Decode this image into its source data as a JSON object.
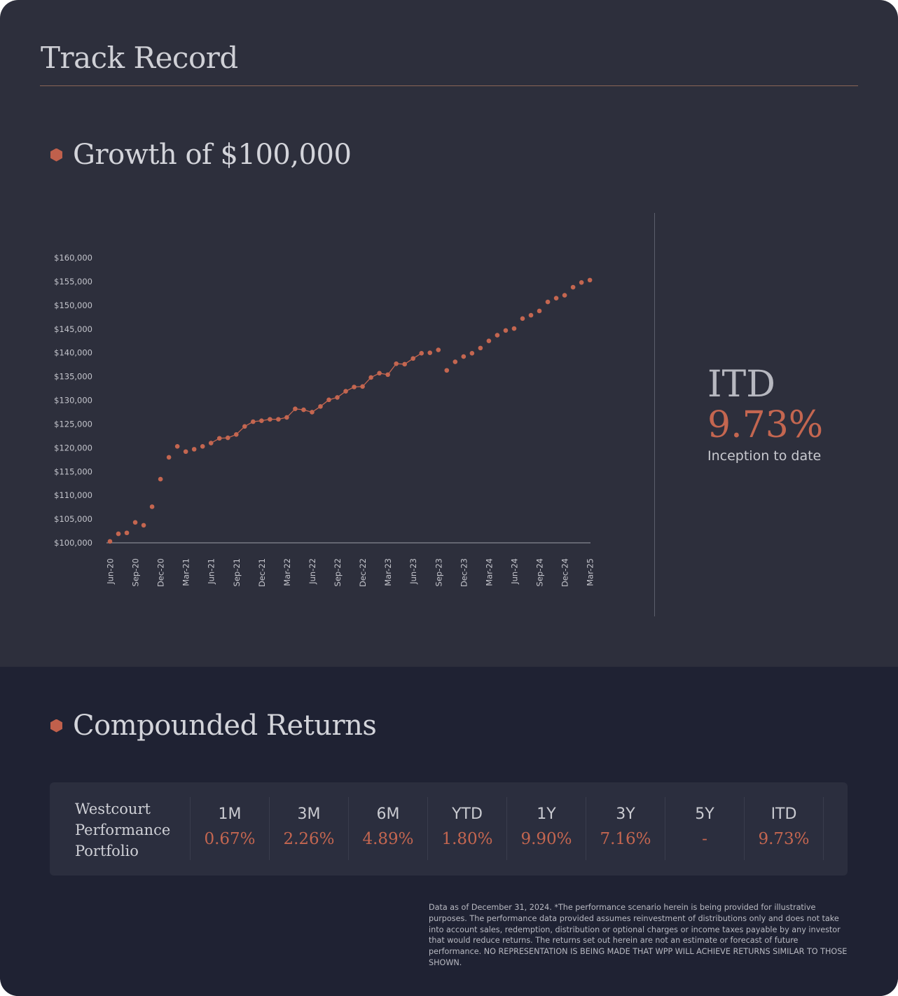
{
  "page_title": "Track Record",
  "growth_section": {
    "heading": "Growth of $100,000"
  },
  "itd_panel": {
    "label": "ITD",
    "value": "9.73%",
    "sublabel": "Inception to date"
  },
  "returns_section": {
    "heading": "Compounded Returns",
    "portfolio_name": "Westcourt Performance Portfolio",
    "columns": [
      {
        "label": "1M",
        "value": "0.67%"
      },
      {
        "label": "3M",
        "value": "2.26%"
      },
      {
        "label": "6M",
        "value": "4.89%"
      },
      {
        "label": "YTD",
        "value": "1.80%"
      },
      {
        "label": "1Y",
        "value": "9.90%"
      },
      {
        "label": "3Y",
        "value": "7.16%"
      },
      {
        "label": "5Y",
        "value": "-"
      },
      {
        "label": "ITD",
        "value": "9.73%"
      }
    ]
  },
  "disclaimer": "Data as of December 31, 2024. *The performance scenario herein is being provided for illustrative purposes. The performance data provided assumes reinvestment of distributions only and does not take into account sales, redemption, distribution or optional charges or income taxes payable by any investor that would reduce returns. The returns set out herein are not an estimate or forecast of future performance. NO REPRESENTATION IS BEING MADE THAT WPP WILL ACHIEVE RETURNS SIMILAR TO THOSE SHOWN.",
  "colors": {
    "accent": "#c46650",
    "background": "#2d2f3c",
    "background_dark": "#1f2233",
    "text": "#cfd0d6"
  },
  "chart_data": {
    "type": "scatter",
    "title": "",
    "xlabel": "",
    "ylabel": "",
    "ylim": [
      100000,
      160000
    ],
    "y_ticks": [
      "$100,000",
      "$105,000",
      "$110,000",
      "$115,000",
      "$120,000",
      "$125,000",
      "$130,000",
      "$135,000",
      "$140,000",
      "$145,000",
      "$150,000",
      "$155,000",
      "$160,000"
    ],
    "x_tick_labels": [
      "Jun-20",
      "Sep-20",
      "Dec-20",
      "Mar-21",
      "Jun-21",
      "Sep-21",
      "Dec-21",
      "Mar-22",
      "Jun-22",
      "Sep-22",
      "Dec-22",
      "Mar-23",
      "Jun-23",
      "Sep-23",
      "Dec-23",
      "Mar-24",
      "Jun-24",
      "Sep-24",
      "Dec-24",
      "Mar-25"
    ],
    "x_months": [
      "Jun-20",
      "Jul-20",
      "Aug-20",
      "Sep-20",
      "Oct-20",
      "Nov-20",
      "Dec-20",
      "Jan-21",
      "Feb-21",
      "Mar-21",
      "Apr-21",
      "May-21",
      "Jun-21",
      "Jul-21",
      "Aug-21",
      "Sep-21",
      "Oct-21",
      "Nov-21",
      "Dec-21",
      "Jan-22",
      "Feb-22",
      "Mar-22",
      "Apr-22",
      "May-22",
      "Jun-22",
      "Jul-22",
      "Aug-22",
      "Sep-22",
      "Oct-22",
      "Nov-22",
      "Dec-22",
      "Jan-23",
      "Feb-23",
      "Mar-23",
      "Apr-23",
      "May-23",
      "Jun-23",
      "Jul-23",
      "Aug-23",
      "Sep-23",
      "Oct-23",
      "Nov-23",
      "Dec-23",
      "Jan-24",
      "Feb-24",
      "Mar-24",
      "Apr-24",
      "May-24",
      "Jun-24",
      "Jul-24",
      "Aug-24",
      "Sep-24",
      "Oct-24",
      "Nov-24",
      "Dec-24",
      "Jan-25",
      "Feb-25",
      "Mar-25"
    ],
    "series": [
      {
        "values": [
          100300,
          101900,
          102100,
          104300,
          103700,
          107600,
          113400,
          118000,
          120300,
          119200,
          119700,
          120300,
          121000,
          122000,
          122100,
          122800,
          124500,
          125500,
          125700,
          126000,
          126000,
          126400,
          128200,
          128000,
          127500,
          128700,
          130100,
          130600,
          131900,
          132800,
          132900,
          134800,
          135700,
          135400,
          137700,
          137600,
          138800,
          139900,
          140000,
          140600,
          136300,
          138100,
          139200,
          139900,
          141000,
          142500,
          143700,
          144700,
          145100,
          147200,
          147900,
          148800,
          150700,
          151500,
          152100,
          153800,
          154800,
          155300
        ],
        "connected_segments": [
          [
            12,
            13
          ],
          [
            13,
            14
          ],
          [
            14,
            15
          ],
          [
            15,
            16
          ],
          [
            16,
            17
          ],
          [
            17,
            18
          ],
          [
            18,
            19
          ],
          [
            19,
            20
          ],
          [
            20,
            21
          ],
          [
            21,
            22
          ],
          [
            22,
            23
          ],
          [
            23,
            24
          ],
          [
            24,
            25
          ],
          [
            25,
            26
          ],
          [
            26,
            27
          ],
          [
            27,
            28
          ],
          [
            28,
            29
          ],
          [
            29,
            30
          ],
          [
            30,
            31
          ],
          [
            31,
            32
          ],
          [
            32,
            33
          ],
          [
            33,
            34
          ],
          [
            34,
            35
          ],
          [
            35,
            36
          ],
          [
            36,
            37
          ]
        ]
      }
    ],
    "grid": false,
    "legend": "none"
  }
}
